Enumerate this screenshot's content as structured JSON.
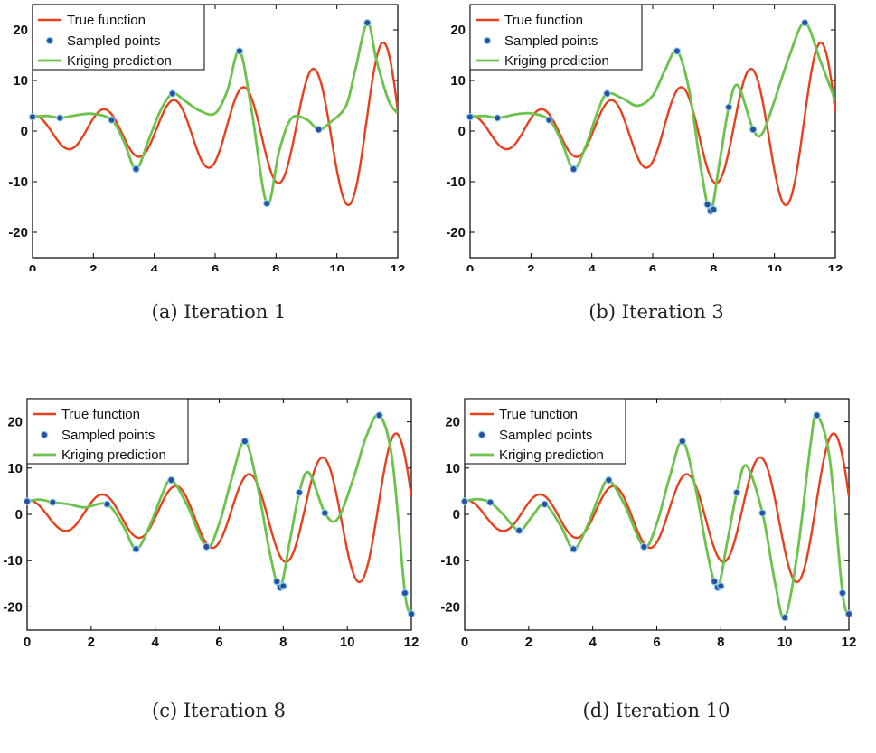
{
  "chart_data": [
    {
      "type": "line",
      "caption": "(a) Iteration 1",
      "legend": [
        "True function",
        "Sampled points",
        "Kriging prediction"
      ],
      "legend_placement": "top-left",
      "xlim": [
        0,
        12
      ],
      "ylim": [
        -25,
        25
      ],
      "xticks": [
        0,
        2,
        4,
        6,
        8,
        10,
        12
      ],
      "yticks": [
        20,
        10,
        0,
        -10,
        -20
      ],
      "grid": false,
      "colors": {
        "true": "#e8401c",
        "kriging": "#6cc24a",
        "points": "#2a4fa0"
      },
      "samples": {
        "x": [
          0.0,
          0.9,
          2.6,
          3.4,
          4.6,
          6.8,
          7.7,
          9.4,
          11.0
        ],
        "y": [
          2.8,
          2.6,
          2.2,
          -7.5,
          7.4,
          15.8,
          -14.3,
          0.3,
          21.4
        ]
      },
      "kriging": {
        "x": [
          0,
          0.5,
          0.9,
          1.5,
          2.0,
          2.6,
          3.0,
          3.4,
          3.8,
          4.2,
          4.6,
          5.0,
          5.5,
          6.0,
          6.4,
          6.8,
          7.2,
          7.7,
          8.1,
          8.5,
          9.0,
          9.4,
          9.8,
          10.3,
          10.6,
          11.0,
          11.3,
          11.7,
          12.0
        ],
        "y": [
          2.8,
          3.0,
          2.6,
          3.2,
          3.4,
          2.2,
          -2.0,
          -7.5,
          -2.0,
          4.0,
          7.4,
          6.0,
          4.0,
          3.5,
          8.0,
          15.8,
          4.0,
          -14.3,
          -4.0,
          2.5,
          2.3,
          0.3,
          1.8,
          5.0,
          12.0,
          21.4,
          14.0,
          6.0,
          3.5
        ]
      }
    },
    {
      "type": "line",
      "caption": "(b) Iteration 3",
      "legend": [
        "True function",
        "Sampled points",
        "Kriging prediction"
      ],
      "legend_placement": "top-left",
      "xlim": [
        0,
        12
      ],
      "ylim": [
        -25,
        25
      ],
      "xticks": [
        0,
        2,
        4,
        6,
        8,
        10,
        12
      ],
      "yticks": [
        20,
        10,
        0,
        -10,
        -20
      ],
      "grid": false,
      "colors": {
        "true": "#e8401c",
        "kriging": "#6cc24a",
        "points": "#2a4fa0"
      },
      "samples": {
        "x": [
          0.0,
          0.9,
          2.6,
          3.4,
          4.5,
          6.8,
          7.8,
          7.9,
          8.0,
          8.5,
          9.3,
          11.0
        ],
        "y": [
          2.8,
          2.6,
          2.2,
          -7.5,
          7.4,
          15.8,
          -14.5,
          -15.8,
          -15.5,
          4.7,
          0.3,
          21.4
        ]
      },
      "kriging": {
        "x": [
          0,
          0.5,
          0.9,
          1.5,
          2.0,
          2.6,
          3.0,
          3.4,
          3.8,
          4.2,
          4.5,
          5.0,
          5.5,
          6.0,
          6.4,
          6.8,
          7.2,
          7.6,
          7.9,
          8.2,
          8.5,
          8.8,
          9.3,
          9.6,
          10.0,
          10.5,
          11.0,
          11.5,
          12.0
        ],
        "y": [
          2.8,
          3.0,
          2.6,
          3.3,
          3.5,
          2.2,
          -2.0,
          -7.5,
          -3.0,
          4.0,
          7.4,
          6.5,
          5.0,
          7.0,
          12.0,
          15.8,
          8.0,
          -8.0,
          -15.8,
          -6.0,
          4.7,
          9.0,
          0.3,
          -0.5,
          6.0,
          15.0,
          21.4,
          14.0,
          6.0
        ]
      }
    },
    {
      "type": "line",
      "caption": "(c) Iteration 8",
      "legend": [
        "True function",
        "Sampled points",
        "Kriging prediction"
      ],
      "legend_placement": "top-left",
      "xlim": [
        0,
        12
      ],
      "ylim": [
        -25,
        25
      ],
      "xticks": [
        0,
        2,
        4,
        6,
        8,
        10,
        12
      ],
      "yticks": [
        20,
        10,
        0,
        -10,
        -20
      ],
      "grid": false,
      "colors": {
        "true": "#e8401c",
        "kriging": "#6cc24a",
        "points": "#2a4fa0"
      },
      "samples": {
        "x": [
          0.0,
          0.8,
          2.5,
          3.4,
          4.5,
          5.6,
          6.8,
          7.8,
          7.9,
          8.0,
          8.5,
          9.3,
          11.0,
          11.8,
          12.0
        ],
        "y": [
          2.8,
          2.6,
          2.2,
          -7.5,
          7.4,
          -7.0,
          15.8,
          -14.5,
          -15.8,
          -15.5,
          4.7,
          0.3,
          21.4,
          -17.0,
          -21.5
        ]
      },
      "kriging": {
        "x": [
          0,
          0.4,
          0.8,
          1.3,
          1.8,
          2.5,
          3.0,
          3.4,
          3.8,
          4.2,
          4.5,
          5.0,
          5.6,
          6.0,
          6.4,
          6.8,
          7.2,
          7.6,
          7.9,
          8.2,
          8.5,
          8.8,
          9.3,
          9.7,
          10.2,
          10.6,
          11.0,
          11.4,
          11.8,
          12.0
        ],
        "y": [
          2.8,
          3.2,
          2.6,
          2.2,
          1.5,
          2.2,
          -2.5,
          -7.5,
          -3.0,
          4.0,
          7.4,
          2.0,
          -7.0,
          -2.0,
          8.0,
          15.8,
          6.0,
          -9.0,
          -15.8,
          -6.0,
          4.7,
          9.0,
          0.3,
          -1.0,
          8.0,
          17.0,
          21.4,
          12.0,
          -17.0,
          -21.5
        ]
      }
    },
    {
      "type": "line",
      "caption": "(d) Iteration 10",
      "legend": [
        "True function",
        "Sampled points",
        "Kriging prediction"
      ],
      "legend_placement": "top-left",
      "xlim": [
        0,
        12
      ],
      "ylim": [
        -25,
        25
      ],
      "xticks": [
        0,
        2,
        4,
        6,
        8,
        10,
        12
      ],
      "yticks": [
        20,
        10,
        0,
        -10,
        -20
      ],
      "grid": false,
      "colors": {
        "true": "#e8401c",
        "kriging": "#6cc24a",
        "points": "#2a4fa0"
      },
      "samples": {
        "x": [
          0.0,
          0.8,
          1.7,
          2.5,
          3.4,
          4.5,
          5.6,
          6.8,
          7.8,
          7.9,
          8.0,
          8.5,
          9.3,
          10.0,
          11.0,
          11.8,
          12.0
        ],
        "y": [
          2.8,
          2.6,
          -3.5,
          2.2,
          -7.5,
          7.4,
          -7.0,
          15.8,
          -14.5,
          -15.8,
          -15.5,
          4.7,
          0.3,
          -22.3,
          21.4,
          -17.0,
          -21.5
        ]
      },
      "kriging": {
        "x": [
          0,
          0.4,
          0.8,
          1.2,
          1.7,
          2.1,
          2.5,
          3.0,
          3.4,
          3.8,
          4.2,
          4.5,
          5.0,
          5.6,
          6.0,
          6.4,
          6.8,
          7.2,
          7.6,
          7.9,
          8.2,
          8.5,
          8.8,
          9.3,
          9.7,
          10.0,
          10.4,
          10.8,
          11.0,
          11.4,
          11.8,
          12.0
        ],
        "y": [
          2.8,
          3.3,
          2.6,
          0.0,
          -3.5,
          -0.5,
          2.2,
          -2.5,
          -7.5,
          -3.0,
          4.0,
          7.4,
          2.0,
          -7.0,
          -2.0,
          8.0,
          15.8,
          6.0,
          -9.0,
          -15.8,
          -6.0,
          4.7,
          10.5,
          0.3,
          -15.0,
          -22.3,
          -8.0,
          15.0,
          21.4,
          12.0,
          -17.0,
          -21.5
        ]
      }
    }
  ]
}
